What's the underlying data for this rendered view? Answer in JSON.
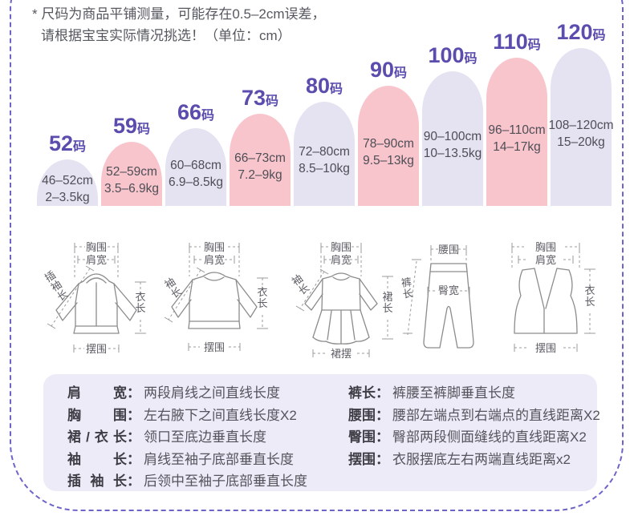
{
  "note": {
    "line1": "* 尺码为商品平铺测量，可能存在0.5–2cm误差，",
    "line2": "请根据宝宝实际情况挑选！（单位：cm）"
  },
  "chart_data": {
    "type": "bar",
    "categories": [
      "52码",
      "59码",
      "66码",
      "73码",
      "80码",
      "90码",
      "100码",
      "110码",
      "120码"
    ],
    "series": [
      {
        "name": "height_range_cm",
        "values": [
          "46–52cm",
          "52–59cm",
          "60–68cm",
          "66–73cm",
          "72–80cm",
          "78–90cm",
          "90–100cm",
          "96–110cm",
          "108–120cm"
        ]
      },
      {
        "name": "weight_range_kg",
        "values": [
          "2–3.5kg",
          "3.5–6.9kg",
          "6.9–8.5kg",
          "7.2–9kg",
          "8.5–10kg",
          "9.5–13kg",
          "10–13.5kg",
          "14–17kg",
          "15–20kg"
        ]
      }
    ],
    "legend_position": "none",
    "grid": false
  },
  "size_chart": {
    "bars": [
      {
        "size": "52",
        "suffix": "码",
        "height_range": "46–52cm",
        "weight_range": "2–3.5kg",
        "tone": "lavender"
      },
      {
        "size": "59",
        "suffix": "码",
        "height_range": "52–59cm",
        "weight_range": "3.5–6.9kg",
        "tone": "pink"
      },
      {
        "size": "66",
        "suffix": "码",
        "height_range": "60–68cm",
        "weight_range": "6.9–8.5kg",
        "tone": "lavender"
      },
      {
        "size": "73",
        "suffix": "码",
        "height_range": "66–73cm",
        "weight_range": "7.2–9kg",
        "tone": "pink"
      },
      {
        "size": "80",
        "suffix": "码",
        "height_range": "72–80cm",
        "weight_range": "8.5–10kg",
        "tone": "lavender"
      },
      {
        "size": "90",
        "suffix": "码",
        "height_range": "78–90cm",
        "weight_range": "9.5–13kg",
        "tone": "pink"
      },
      {
        "size": "100",
        "suffix": "码",
        "height_range": "90–100cm",
        "weight_range": "10–13.5kg",
        "tone": "lavender"
      },
      {
        "size": "110",
        "suffix": "码",
        "height_range": "96–110cm",
        "weight_range": "14–17kg",
        "tone": "pink"
      },
      {
        "size": "120",
        "suffix": "码",
        "height_range": "108–120cm",
        "weight_range": "15–20kg",
        "tone": "lavender"
      }
    ],
    "colors": {
      "lavender": "#e5e2f1",
      "pink": "#f9c5cd",
      "size_label": "#5a4dae",
      "border_dash": "#6d64ca"
    }
  },
  "diagrams": [
    {
      "name": "hooded-jacket",
      "labels": {
        "chest": "胸围",
        "shoulder": "肩宽",
        "sleeve": "插袖长",
        "length": "衣长",
        "hem": "摆围"
      }
    },
    {
      "name": "sweater",
      "labels": {
        "chest": "胸围",
        "shoulder": "肩宽",
        "sleeve": "袖长",
        "length": "衣长",
        "hem": "摆围"
      }
    },
    {
      "name": "dress",
      "labels": {
        "chest": "胸围",
        "shoulder": "肩宽",
        "sleeve": "袖长",
        "length": "裙长",
        "hem": "裙摆"
      }
    },
    {
      "name": "pants",
      "labels": {
        "waist": "腰围",
        "hip": "臀宽",
        "length": "裤长"
      }
    },
    {
      "name": "vest",
      "labels": {
        "chest": "胸围",
        "shoulder": "肩宽",
        "length": "衣长",
        "hem": "摆围"
      }
    }
  ],
  "legend": {
    "colon": "：",
    "left": [
      {
        "term": "肩宽",
        "desc": "两段肩线之间直线长度"
      },
      {
        "term": "胸围",
        "desc": "左右腋下之间直线长度X2"
      },
      {
        "term": "裙/衣长",
        "desc": "领口至底边垂直长度"
      },
      {
        "term": "袖长",
        "desc": "肩线至袖子底部垂直长度"
      },
      {
        "term": "插袖长",
        "desc": "后领中至袖子底部垂直长度"
      }
    ],
    "right": [
      {
        "term": "裤长",
        "desc": "裤腰至裤脚垂直长度"
      },
      {
        "term": "腰围",
        "desc": "腰部左端点到右端点的直线距离X2"
      },
      {
        "term": "臀围",
        "desc": "臀部两段侧面缝线的直线距离X2"
      },
      {
        "term": "摆围",
        "desc": "衣服摆底左右两端直线距离x2"
      }
    ]
  }
}
